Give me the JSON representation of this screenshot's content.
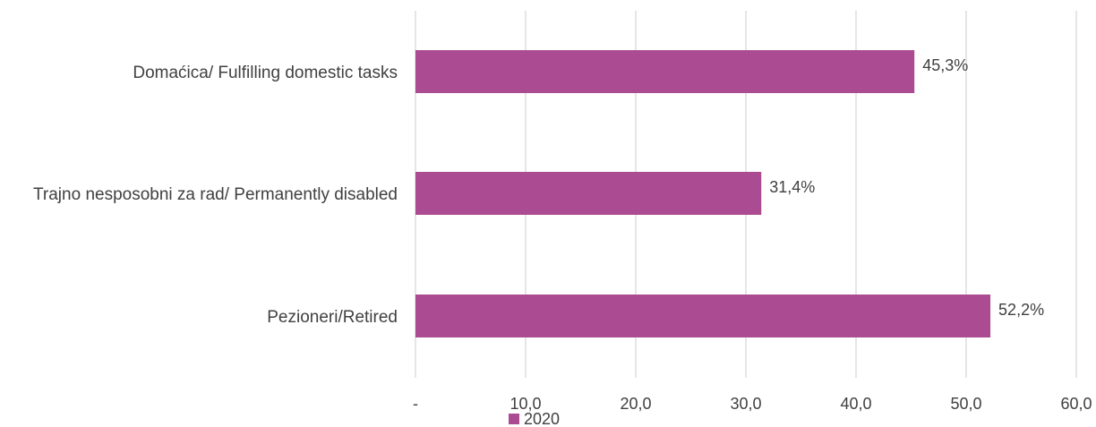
{
  "chart_data": {
    "type": "bar",
    "orientation": "horizontal",
    "categories": [
      "Domaćica/ Fulfilling domestic tasks",
      "Trajno nesposobni za rad/ Permanently disabled",
      "Pezioneri/Retired"
    ],
    "series": [
      {
        "name": "2020",
        "values": [
          45.3,
          31.4,
          52.2
        ]
      }
    ],
    "data_labels": [
      "45,3%",
      "31,4%",
      "52,2%"
    ],
    "x_ticks": [
      0,
      10,
      20,
      30,
      40,
      50,
      60
    ],
    "x_tick_labels": [
      "-",
      "10,0",
      "20,0",
      "30,0",
      "40,0",
      "50,0",
      "60,0"
    ],
    "xlim": [
      0,
      60
    ],
    "title": "",
    "xlabel": "",
    "ylabel": "",
    "grid": "vertical",
    "legend": "bottom-left",
    "colors": {
      "bar": "#ab4b91",
      "grid": "#d9d9d9",
      "text": "#404040"
    }
  }
}
